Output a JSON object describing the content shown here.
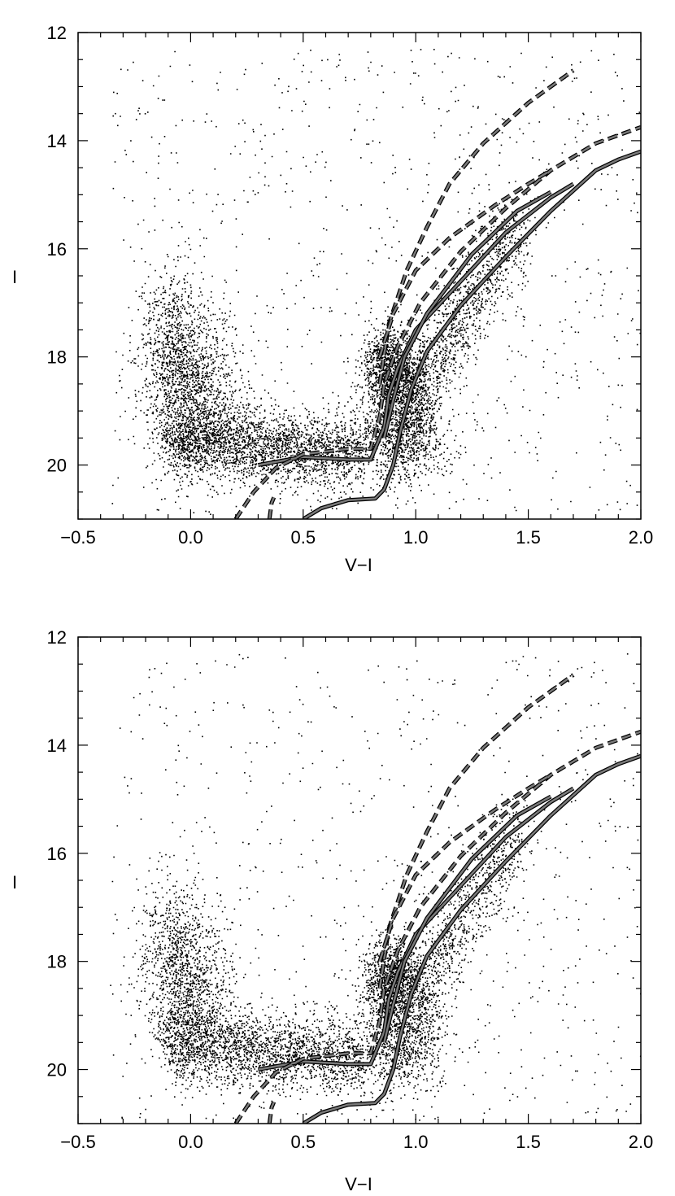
{
  "chart_data": [
    {
      "type": "scatter",
      "title": "",
      "xlabel": "V−I",
      "ylabel": "I",
      "xlim": [
        -0.5,
        2.0
      ],
      "ylim": [
        21.0,
        12.0
      ],
      "y_inverted": true,
      "grid": false,
      "xticks": [
        -0.5,
        0.0,
        0.5,
        1.0,
        1.5,
        2.0
      ],
      "xtick_labels": [
        "−0.5",
        "0.0",
        "0.5",
        "1.0",
        "1.5",
        "2.0"
      ],
      "yticks": [
        12,
        14,
        16,
        18,
        20
      ],
      "ytick_labels": [
        "12",
        "14",
        "16",
        "18",
        "20"
      ],
      "point_color": "#000000",
      "isochrone_color": "#7a7a7a",
      "isochrones": [
        {
          "style": "solid",
          "points": [
            [
              0.5,
              21.0
            ],
            [
              0.58,
              20.8
            ],
            [
              0.7,
              20.65
            ],
            [
              0.82,
              20.62
            ],
            [
              0.86,
              20.45
            ],
            [
              0.9,
              20.0
            ],
            [
              0.93,
              19.4
            ],
            [
              0.98,
              18.6
            ],
            [
              1.05,
              17.9
            ],
            [
              1.2,
              17.05
            ],
            [
              1.4,
              16.15
            ],
            [
              1.6,
              15.3
            ],
            [
              1.8,
              14.55
            ],
            [
              1.9,
              14.35
            ],
            [
              2.0,
              14.2
            ]
          ]
        },
        {
          "style": "solid",
          "points": [
            [
              0.3,
              20.0
            ],
            [
              0.5,
              19.85
            ],
            [
              0.7,
              19.9
            ],
            [
              0.8,
              19.9
            ],
            [
              0.86,
              19.3
            ],
            [
              0.88,
              18.7
            ],
            [
              0.92,
              18.2
            ],
            [
              1.0,
              17.5
            ],
            [
              1.2,
              16.6
            ],
            [
              1.4,
              15.7
            ],
            [
              1.6,
              15.05
            ],
            [
              1.7,
              14.8
            ]
          ]
        },
        {
          "style": "solid",
          "points": [
            [
              0.86,
              19.5
            ],
            [
              0.9,
              18.8
            ],
            [
              0.95,
              18.0
            ],
            [
              1.05,
              17.2
            ],
            [
              1.25,
              16.1
            ],
            [
              1.45,
              15.3
            ],
            [
              1.6,
              14.95
            ]
          ]
        },
        {
          "style": "dashed",
          "points": [
            [
              0.2,
              21.0
            ],
            [
              0.28,
              20.5
            ],
            [
              0.38,
              20.05
            ],
            [
              0.5,
              19.8
            ],
            [
              0.7,
              19.7
            ],
            [
              0.8,
              19.7
            ],
            [
              0.84,
              19.1
            ],
            [
              0.86,
              18.5
            ],
            [
              0.92,
              17.8
            ],
            [
              1.02,
              17.0
            ],
            [
              1.2,
              16.05
            ],
            [
              1.4,
              15.25
            ],
            [
              1.6,
              14.55
            ],
            [
              1.8,
              14.05
            ],
            [
              2.0,
              13.75
            ]
          ]
        },
        {
          "style": "dashed",
          "points": [
            [
              0.35,
              21.0
            ],
            [
              0.36,
              20.7
            ],
            [
              0.37,
              20.6
            ]
          ]
        },
        {
          "style": "dashed",
          "points": [
            [
              0.84,
              18.5
            ],
            [
              0.88,
              17.4
            ],
            [
              0.96,
              16.4
            ],
            [
              1.05,
              15.6
            ],
            [
              1.15,
              14.8
            ],
            [
              1.3,
              14.05
            ],
            [
              1.5,
              13.3
            ],
            [
              1.7,
              12.7
            ]
          ]
        },
        {
          "style": "dashed",
          "points": [
            [
              0.84,
              18.0
            ],
            [
              0.9,
              17.2
            ],
            [
              1.0,
              16.4
            ],
            [
              1.15,
              15.8
            ],
            [
              1.35,
              15.2
            ],
            [
              1.5,
              14.8
            ],
            [
              1.6,
              14.55
            ]
          ]
        }
      ]
    },
    {
      "type": "scatter",
      "title": "",
      "xlabel": "V−I",
      "ylabel": "I",
      "xlim": [
        -0.5,
        2.0
      ],
      "ylim": [
        21.0,
        12.0
      ],
      "y_inverted": true,
      "grid": false,
      "xticks": [
        -0.5,
        0.0,
        0.5,
        1.0,
        1.5,
        2.0
      ],
      "xtick_labels": [
        "−0.5",
        "0.0",
        "0.5",
        "1.0",
        "1.5",
        "2.0"
      ],
      "yticks": [
        12,
        14,
        16,
        18,
        20
      ],
      "ytick_labels": [
        "12",
        "14",
        "16",
        "18",
        "20"
      ],
      "point_color": "#000000",
      "isochrone_color": "#7a7a7a",
      "isochrones": [
        {
          "style": "solid",
          "points": [
            [
              0.5,
              21.0
            ],
            [
              0.58,
              20.8
            ],
            [
              0.7,
              20.65
            ],
            [
              0.82,
              20.62
            ],
            [
              0.86,
              20.45
            ],
            [
              0.9,
              20.0
            ],
            [
              0.93,
              19.4
            ],
            [
              0.98,
              18.6
            ],
            [
              1.05,
              17.9
            ],
            [
              1.2,
              17.05
            ],
            [
              1.4,
              16.15
            ],
            [
              1.6,
              15.3
            ],
            [
              1.8,
              14.55
            ],
            [
              1.9,
              14.35
            ],
            [
              2.0,
              14.2
            ]
          ]
        },
        {
          "style": "solid",
          "points": [
            [
              0.3,
              20.0
            ],
            [
              0.5,
              19.85
            ],
            [
              0.7,
              19.9
            ],
            [
              0.8,
              19.9
            ],
            [
              0.86,
              19.3
            ],
            [
              0.88,
              18.7
            ],
            [
              0.92,
              18.2
            ],
            [
              1.0,
              17.5
            ],
            [
              1.2,
              16.6
            ],
            [
              1.4,
              15.7
            ],
            [
              1.6,
              15.05
            ],
            [
              1.7,
              14.8
            ]
          ]
        },
        {
          "style": "solid",
          "points": [
            [
              0.86,
              19.5
            ],
            [
              0.9,
              18.8
            ],
            [
              0.95,
              18.0
            ],
            [
              1.05,
              17.2
            ],
            [
              1.25,
              16.1
            ],
            [
              1.45,
              15.3
            ],
            [
              1.6,
              14.95
            ]
          ]
        },
        {
          "style": "dashed",
          "points": [
            [
              0.2,
              21.0
            ],
            [
              0.28,
              20.5
            ],
            [
              0.38,
              20.05
            ],
            [
              0.5,
              19.8
            ],
            [
              0.7,
              19.7
            ],
            [
              0.8,
              19.7
            ],
            [
              0.84,
              19.1
            ],
            [
              0.86,
              18.5
            ],
            [
              0.92,
              17.8
            ],
            [
              1.02,
              17.0
            ],
            [
              1.2,
              16.05
            ],
            [
              1.4,
              15.25
            ],
            [
              1.6,
              14.55
            ],
            [
              1.8,
              14.05
            ],
            [
              2.0,
              13.75
            ]
          ]
        },
        {
          "style": "dashed",
          "points": [
            [
              0.35,
              21.0
            ],
            [
              0.36,
              20.7
            ],
            [
              0.37,
              20.6
            ]
          ]
        },
        {
          "style": "dashed",
          "points": [
            [
              0.84,
              18.5
            ],
            [
              0.88,
              17.4
            ],
            [
              0.96,
              16.4
            ],
            [
              1.05,
              15.6
            ],
            [
              1.15,
              14.8
            ],
            [
              1.3,
              14.05
            ],
            [
              1.5,
              13.3
            ],
            [
              1.7,
              12.7
            ]
          ]
        },
        {
          "style": "dashed",
          "points": [
            [
              0.84,
              18.0
            ],
            [
              0.9,
              17.2
            ],
            [
              1.0,
              16.4
            ],
            [
              1.15,
              15.8
            ],
            [
              1.35,
              15.2
            ],
            [
              1.5,
              14.8
            ],
            [
              1.6,
              14.55
            ]
          ]
        }
      ]
    }
  ]
}
